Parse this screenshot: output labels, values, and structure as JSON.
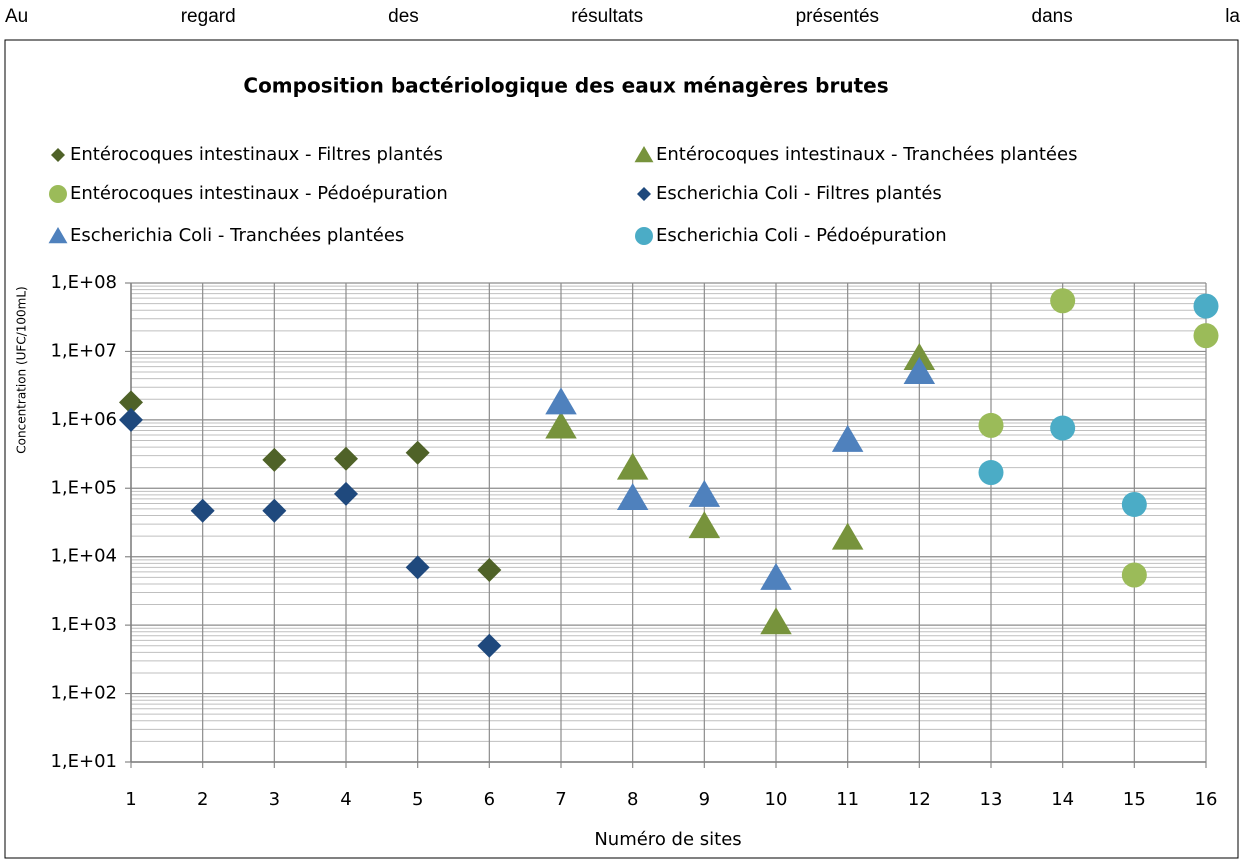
{
  "intro": "Au regard des résultats présentés dans la",
  "chart_data": {
    "type": "scatter",
    "title": "Composition bactériologique des eaux  ménagères brutes",
    "xlabel": "Numéro de sites",
    "ylabel": "Concentration (UFC/100mL)",
    "xlim": [
      1,
      16
    ],
    "xticks": [
      1,
      2,
      3,
      4,
      5,
      6,
      7,
      8,
      9,
      10,
      11,
      12,
      13,
      14,
      15,
      16
    ],
    "ylim": [
      10,
      100000000
    ],
    "ylog": true,
    "grid": true,
    "minor_grid": true,
    "legend": "top",
    "yticks": [
      {
        "value": 10,
        "label": "1,E+01"
      },
      {
        "value": 100,
        "label": "1,E+02"
      },
      {
        "value": 1000,
        "label": "1,E+03"
      },
      {
        "value": 10000,
        "label": "1,E+04"
      },
      {
        "value": 100000,
        "label": "1,E+05"
      },
      {
        "value": 1000000,
        "label": "1,E+06"
      },
      {
        "value": 10000000,
        "label": "1,E+07"
      },
      {
        "value": 100000000,
        "label": "1,E+08"
      }
    ],
    "series": [
      {
        "name": "Entérocoques intestinaux - Filtres plantés",
        "color": "#4f6228",
        "marker": "diamond",
        "x": [
          1,
          3,
          4,
          5,
          6
        ],
        "values": [
          1800000,
          260000,
          270000,
          330000,
          6400
        ]
      },
      {
        "name": "Entérocoques intestinaux - Tranchées plantées",
        "color": "#77933c",
        "marker": "triangle",
        "x": [
          7,
          8,
          9,
          10,
          11,
          12
        ],
        "values": [
          800000,
          200000,
          28000,
          1100,
          19000,
          8000000
        ]
      },
      {
        "name": "Entérocoques intestinaux - Pédoépuration",
        "color": "#9bbb59",
        "marker": "circle",
        "x": [
          13,
          14,
          15,
          16
        ],
        "values": [
          830000,
          55000000,
          5400,
          17000000
        ]
      },
      {
        "name": "Escherichia Coli - Filtres plantés",
        "color": "#1f497d",
        "marker": "diamond",
        "x": [
          1,
          2,
          3,
          4,
          5,
          6
        ],
        "values": [
          1000000,
          47000,
          47000,
          83000,
          7000,
          500
        ]
      },
      {
        "name": "Escherichia Coli - Tranchées plantées",
        "color": "#4f81bd",
        "marker": "triangle",
        "x": [
          7,
          8,
          9,
          10,
          11,
          12
        ],
        "values": [
          1800000,
          72000,
          80000,
          4900,
          510000,
          5000000
        ]
      },
      {
        "name": "Escherichia Coli - Pédoépuration",
        "color": "#4bacc6",
        "marker": "circle",
        "x": [
          13,
          14,
          15,
          16
        ],
        "values": [
          170000,
          760000,
          58000,
          46000000
        ]
      }
    ]
  }
}
